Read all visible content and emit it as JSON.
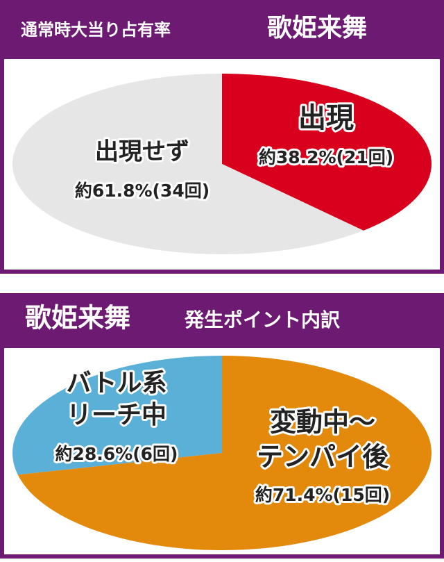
{
  "chart_data": [
    {
      "type": "pie",
      "subtitle": "通常時大当り占有率",
      "title": "歌姫来舞",
      "categories": [
        [
          "出現"
        ],
        [
          "出現せず"
        ]
      ],
      "values": [
        38.2,
        61.8
      ],
      "value_labels": [
        "約38.2%(21回)",
        "約61.8%(34回)"
      ],
      "colors": [
        "#d8001c",
        "#e6e6e6"
      ],
      "counterclock": false
    },
    {
      "type": "pie",
      "title": "歌姫来舞",
      "subtitle": "発生ポイント内訳",
      "categories": [
        [
          "バトル系",
          "リーチ中"
        ],
        [
          "変動中～",
          "テンパイ後"
        ]
      ],
      "values": [
        28.6,
        71.4
      ],
      "value_labels": [
        "約28.6%(6回)",
        "約71.4%(15回)"
      ],
      "colors": [
        "#5bb0d8",
        "#e3890c"
      ],
      "counterclock": true
    }
  ]
}
